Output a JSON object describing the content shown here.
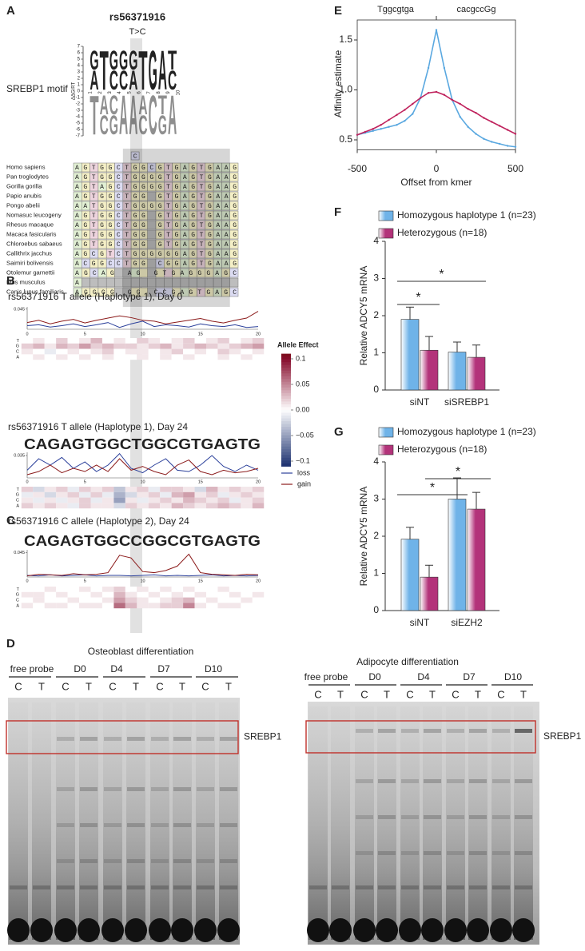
{
  "panel_labels": [
    "A",
    "B",
    "C",
    "D",
    "E",
    "F",
    "G"
  ],
  "panel_a": {
    "snp": "rs56371916",
    "change": "T>C",
    "motif_label": "SREBP1 motif",
    "motif_ylabel": "ΔΔG/RT",
    "motif_yticks": [
      7,
      6,
      5,
      4,
      3,
      2,
      1,
      0,
      -1,
      -2,
      -3,
      -4,
      -5,
      -6,
      -7
    ],
    "motif_xticks": [
      1,
      2,
      3,
      4,
      5,
      6,
      7,
      8,
      9,
      10
    ],
    "motif_top": [
      "AG",
      "T",
      "CG",
      "CG",
      "AG",
      "T",
      "G",
      "A",
      "CT"
    ],
    "motif_bottom": [
      "T",
      "AC",
      "CG",
      "A",
      "A",
      "AC",
      "C",
      "TG",
      "A"
    ],
    "variant": "C",
    "species": [
      {
        "name": "Homo sapiens",
        "seq": "AGTGGCTGGCGTGAGTGAAG"
      },
      {
        "name": "Pan troglodytes",
        "seq": "AGTGGCTGGGGTGAGTGAAG"
      },
      {
        "name": "Gorilla gorilla",
        "seq": "AGTAGCTGGGGTGAGTGAAG"
      },
      {
        "name": "Papio anubis",
        "seq": "AGTGGCTGG GTGAGTGAAG"
      },
      {
        "name": "Pongo abelii",
        "seq": "AATGGCTGGGGTGAGTGAAG"
      },
      {
        "name": "Nomasuc leucogeny",
        "seq": "AGTGGCTGG GTGAGTGAAG"
      },
      {
        "name": "Rhesus macaque",
        "seq": "AGTGGCTGG GTGAGTGAAG"
      },
      {
        "name": "Macaca fasicularis",
        "seq": "AGTGGCTGG GTGAGTGAAG"
      },
      {
        "name": "Chloroebus sabaeus",
        "seq": "AGTGGCTGG GTGAGTGAAG"
      },
      {
        "name": "Callithrix jacchus",
        "seq": "AGCGTCTGGGGGGAGTGAAG"
      },
      {
        "name": "Saimiri bolivensis",
        "seq": "ACGGCCTGG CGGAGTGAAG"
      },
      {
        "name": "Otolemur garnettii",
        "seq": "AGCAG  AG GTGAGGGAGC"
      },
      {
        "name": "Mus musculus",
        "seq": "A                   "
      },
      {
        "name": "Canis lupus familiaris",
        "seq": "AGGGG  GG CCGAGTGAGC"
      }
    ]
  },
  "panel_bc": {
    "colorbar": {
      "title": "Allele Effect",
      "lim": [
        -0.11,
        0.11
      ],
      "ticks": [
        0.1,
        0.05,
        {
          "value": 0,
          "label": "0.00"
        },
        {
          "value": -0.05,
          "label": "−0.05"
        },
        {
          "value": -0.1,
          "label": "−0.1"
        }
      ]
    },
    "legend": [
      {
        "name": "loss",
        "color": "#2a3f9a"
      },
      {
        "name": "gain",
        "color": "#8b1a1a"
      }
    ],
    "rows": [
      "T",
      "G",
      "C",
      "A"
    ],
    "xticks": [
      0,
      5,
      10,
      15,
      20
    ],
    "tracks": [
      {
        "title": "rs56371916 T allele (Haplotype 1), Day 0",
        "ylim": [
          0,
          0.05
        ],
        "yticks": [
          0.045
        ],
        "gain": [
          0.015,
          0.02,
          0.012,
          0.018,
          0.022,
          0.014,
          0.02,
          0.025,
          0.03,
          0.026,
          0.02,
          0.018,
          0.012,
          0.016,
          0.02,
          0.024,
          0.018,
          0.014,
          0.02,
          0.025,
          0.04
        ],
        "loss": [
          0.008,
          0.01,
          0.005,
          0.008,
          0.012,
          0.006,
          0.01,
          0.015,
          0.004,
          0.012,
          0.018,
          0.006,
          0.01,
          0.008,
          0.005,
          0.012,
          0.008,
          0.006,
          0.01,
          0.004,
          0.006
        ],
        "heatmap": [
          [
            0,
            0.01,
            0,
            0.02,
            0,
            0.01,
            0.03,
            0,
            0.01,
            0,
            0.02,
            0.01,
            0,
            0.01,
            0.02,
            0,
            0.01,
            0.02,
            0,
            0.01,
            0.02
          ],
          [
            0.02,
            0.03,
            0.01,
            0.03,
            0.02,
            0.04,
            0.02,
            0.03,
            0.02,
            0.02,
            0.01,
            0.02,
            0.03,
            0.01,
            0.02,
            0.03,
            0.02,
            0.01,
            0.02,
            0.03,
            0.04
          ],
          [
            0.01,
            0,
            -0.01,
            0,
            0.01,
            0,
            0.01,
            0.02,
            0,
            0.01,
            0.01,
            0,
            0.01,
            0.02,
            0,
            0.01,
            0,
            0.02,
            0.01,
            0,
            0.01
          ],
          [
            0,
            0.01,
            0,
            0.01,
            0,
            0.01,
            0,
            0.01,
            0,
            0,
            0.01,
            0,
            0.01,
            0,
            0.01,
            0,
            0,
            0.01,
            0,
            0.01,
            0
          ]
        ]
      },
      {
        "title": "rs56371916 T allele (Haplotype 1), Day 24",
        "logo": "CAGAGTGGCTGGCGTGAGTG",
        "ylim": [
          0,
          0.04
        ],
        "yticks": [
          0.035
        ],
        "gain": [
          0.005,
          0.01,
          0.02,
          0.008,
          0.015,
          0.01,
          0.02,
          0.01,
          0.03,
          0.012,
          0.018,
          0.01,
          0.005,
          0.02,
          0.028,
          0.01,
          0.005,
          0.012,
          0.008,
          0.01,
          0.015
        ],
        "loss": [
          0.012,
          0.03,
          0.02,
          0.032,
          0.015,
          0.025,
          0.01,
          0.02,
          0.038,
          0.015,
          0.008,
          0.02,
          0.03,
          0.012,
          0.01,
          0.02,
          0.035,
          0.018,
          0.01,
          0.02,
          0.012
        ],
        "heatmap": [
          [
            0.02,
            -0.02,
            0.01,
            0.02,
            -0.01,
            0.02,
            0.01,
            0.02,
            -0.03,
            0.01,
            0.02,
            -0.01,
            0.02,
            0.02,
            0.01,
            -0.02,
            0.03,
            0.01,
            0.02,
            0.01,
            0.02
          ],
          [
            -0.01,
            0.01,
            -0.02,
            0.01,
            0.02,
            -0.01,
            0.02,
            -0.01,
            -0.04,
            -0.02,
            0.01,
            0.02,
            -0.01,
            0.03,
            0.04,
            0.01,
            0.02,
            -0.01,
            0.01,
            0.02,
            0.01
          ],
          [
            0.01,
            -0.01,
            0.01,
            -0.01,
            0.01,
            0.02,
            -0.01,
            0.01,
            -0.05,
            0.01,
            -0.01,
            0.01,
            0.02,
            0.01,
            0.03,
            0.02,
            0.01,
            0.02,
            -0.01,
            0.01,
            0.02
          ],
          [
            0.02,
            0.01,
            0.02,
            0.01,
            -0.01,
            0.02,
            0.01,
            0.01,
            -0.02,
            0.02,
            0.01,
            0.02,
            0.01,
            0.03,
            0.02,
            0.01,
            0.02,
            0.03,
            0.02,
            0.01,
            0.03
          ]
        ]
      },
      {
        "title": "rs56371916 C allele (Haplotype 2), Day 24",
        "logo": "CAGAGTGGCCGGCGTGAGTG",
        "ylim": [
          0,
          0.05
        ],
        "yticks": [
          0.045
        ],
        "gain": [
          0.002,
          0.005,
          0.004,
          0.003,
          0.006,
          0.004,
          0.005,
          0.008,
          0.04,
          0.035,
          0.01,
          0.008,
          0.012,
          0.02,
          0.042,
          0.008,
          0.005,
          0.004,
          0.003,
          0.005,
          0.004
        ],
        "loss": [
          0.003,
          0.002,
          0.004,
          0.002,
          0.003,
          0.004,
          0.002,
          0.003,
          0.003,
          0.002,
          0.003,
          0.004,
          0.002,
          0.003,
          0.002,
          0.003,
          0.004,
          0.002,
          0.003,
          0.002,
          0.003
        ],
        "heatmap": [
          [
            0,
            0,
            0.01,
            0,
            0,
            0.01,
            0,
            0.01,
            0.02,
            0,
            0.01,
            0,
            0.01,
            0,
            0.01,
            0,
            0,
            0.01,
            0,
            0,
            0
          ],
          [
            0.01,
            0.01,
            0,
            0.01,
            0,
            0,
            0.01,
            0,
            0.03,
            0.01,
            0,
            0.01,
            0,
            0.01,
            0,
            0.01,
            0,
            0,
            0.01,
            0,
            0.01
          ],
          [
            0,
            0.01,
            0,
            0,
            0.01,
            0,
            0,
            0.01,
            0.04,
            0.02,
            0.01,
            0,
            0.01,
            0.02,
            0.03,
            0,
            0.01,
            0,
            0,
            0.01,
            0
          ],
          [
            0.01,
            0,
            0.01,
            0.01,
            0,
            0.01,
            0.01,
            0,
            0.06,
            0.03,
            0.01,
            0.01,
            0.02,
            0.02,
            0.05,
            0.01,
            0,
            0.01,
            0.01,
            0,
            0
          ]
        ]
      }
    ]
  },
  "panel_d": {
    "allele_colors": [
      "#9c2a7a",
      "#3a85c8"
    ],
    "gels": [
      {
        "title": "Osteoblast differentiation",
        "groups": [
          "free probe",
          "D0",
          "D4",
          "D7",
          "D10"
        ],
        "alleles": [
          "C",
          "T"
        ],
        "band_label": "SREBP1"
      },
      {
        "title": "Adipocyte differentiation",
        "groups": [
          "free probe",
          "D0",
          "D4",
          "D7",
          "D10"
        ],
        "alleles": [
          "C",
          "T"
        ],
        "band_label": "SREBP1"
      }
    ]
  },
  "chart_data": [
    {
      "type": "line",
      "annotations": [
        "Tggcgtga",
        "cacgccGg"
      ],
      "annotation_colors": [
        "#5aa8e0",
        "#c0245e"
      ],
      "xlabel": "Offset from kmer",
      "ylabel": "Affinity estimate",
      "x": [
        -500,
        -450,
        -400,
        -350,
        -300,
        -250,
        -200,
        -150,
        -100,
        -50,
        0,
        50,
        100,
        150,
        200,
        250,
        300,
        350,
        400,
        450,
        500
      ],
      "xlim": [
        -500,
        500
      ],
      "xticks": [
        -500,
        0,
        500
      ],
      "ylim": [
        0.4,
        1.7
      ],
      "yticks": [
        0.5,
        {
          "value": 1,
          "label": "1.0"
        },
        1.5
      ],
      "series": [
        {
          "color": "#5aa8e0",
          "values": [
            0.55,
            0.57,
            0.59,
            0.61,
            0.63,
            0.65,
            0.69,
            0.76,
            0.92,
            1.22,
            1.6,
            1.22,
            0.9,
            0.73,
            0.63,
            0.56,
            0.51,
            0.48,
            0.46,
            0.44,
            0.43
          ]
        },
        {
          "color": "#c0245e",
          "values": [
            0.55,
            0.58,
            0.61,
            0.65,
            0.7,
            0.75,
            0.8,
            0.86,
            0.92,
            0.97,
            0.98,
            0.95,
            0.9,
            0.86,
            0.81,
            0.77,
            0.72,
            0.68,
            0.64,
            0.6,
            0.56
          ]
        }
      ]
    },
    {
      "type": "bar",
      "ylabel": "Relative ADCY5 mRNA",
      "categories": [
        "siNT",
        "siSREBP1"
      ],
      "ylim": [
        0,
        4
      ],
      "yticks": [
        0,
        1,
        2,
        3,
        4
      ],
      "annotations": [
        "*",
        "*"
      ],
      "series": [
        {
          "name": "Homozygous haplotype 1 (n=23)",
          "color": "#6fb3e8",
          "values": [
            1.9,
            1.02
          ],
          "errors": [
            0.33,
            0.27
          ]
        },
        {
          "name": "Heterozygous (n=18)",
          "color": "#b3337a",
          "values": [
            1.07,
            0.88
          ],
          "errors": [
            0.37,
            0.33
          ]
        }
      ]
    },
    {
      "type": "bar",
      "ylabel": "Relative ADCY5 mRNA",
      "categories": [
        "siNT",
        "siEZH2"
      ],
      "ylim": [
        0,
        4
      ],
      "yticks": [
        0,
        1,
        2,
        3,
        4
      ],
      "annotations": [
        "*",
        "*"
      ],
      "series": [
        {
          "name": "Homozygous haplotype 1 (n=23)",
          "color": "#6fb3e8",
          "values": [
            1.92,
            3.0
          ],
          "errors": [
            0.32,
            0.57
          ]
        },
        {
          "name": "Heterozygous (n=18)",
          "color": "#b3337a",
          "values": [
            0.9,
            2.73
          ],
          "errors": [
            0.32,
            0.45
          ]
        }
      ]
    }
  ]
}
